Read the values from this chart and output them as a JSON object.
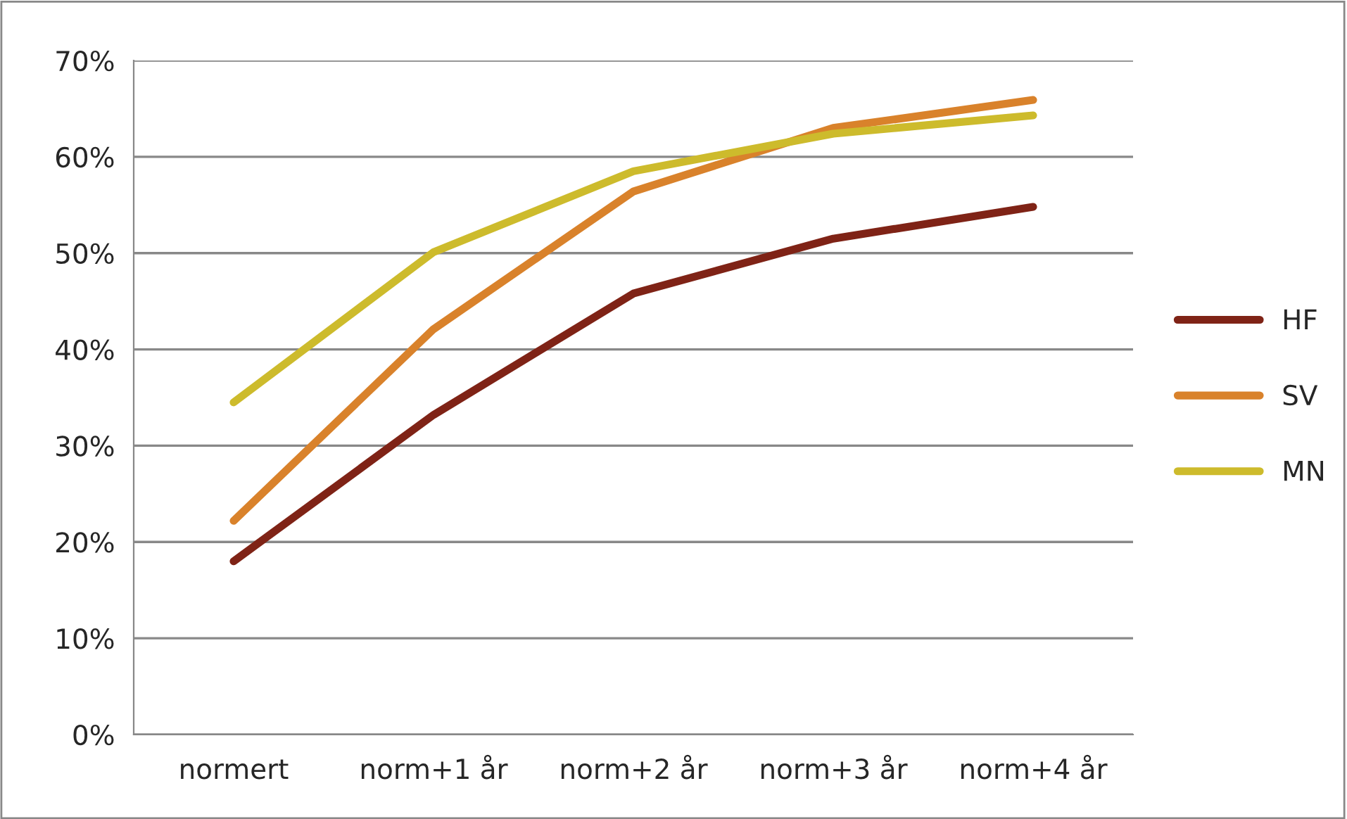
{
  "chart_data": {
    "type": "line",
    "categories": [
      "normert",
      "norm+1 år",
      "norm+2 år",
      "norm+3 år",
      "norm+4 år"
    ],
    "series": [
      {
        "name": "HF",
        "color": "#7f2316",
        "values": [
          18,
          33.2,
          45.8,
          51.5,
          54.8
        ]
      },
      {
        "name": "SV",
        "color": "#d9822b",
        "values": [
          22.2,
          42.1,
          56.4,
          63,
          65.9
        ]
      },
      {
        "name": "MN",
        "color": "#cdbb2c",
        "values": [
          34.5,
          50.1,
          58.5,
          62.4,
          64.3
        ]
      }
    ],
    "ylim": [
      0,
      70
    ],
    "yticks": [
      {
        "value": 0,
        "label": "0%"
      },
      {
        "value": 10,
        "label": "10%"
      },
      {
        "value": 20,
        "label": "20%"
      },
      {
        "value": 30,
        "label": "30%"
      },
      {
        "value": 40,
        "label": "40%"
      },
      {
        "value": 50,
        "label": "50%"
      },
      {
        "value": 60,
        "label": "60%"
      },
      {
        "value": 70,
        "label": "70%"
      }
    ],
    "grid": "y",
    "legend": "right",
    "marker": "none",
    "line_style": "solid"
  }
}
